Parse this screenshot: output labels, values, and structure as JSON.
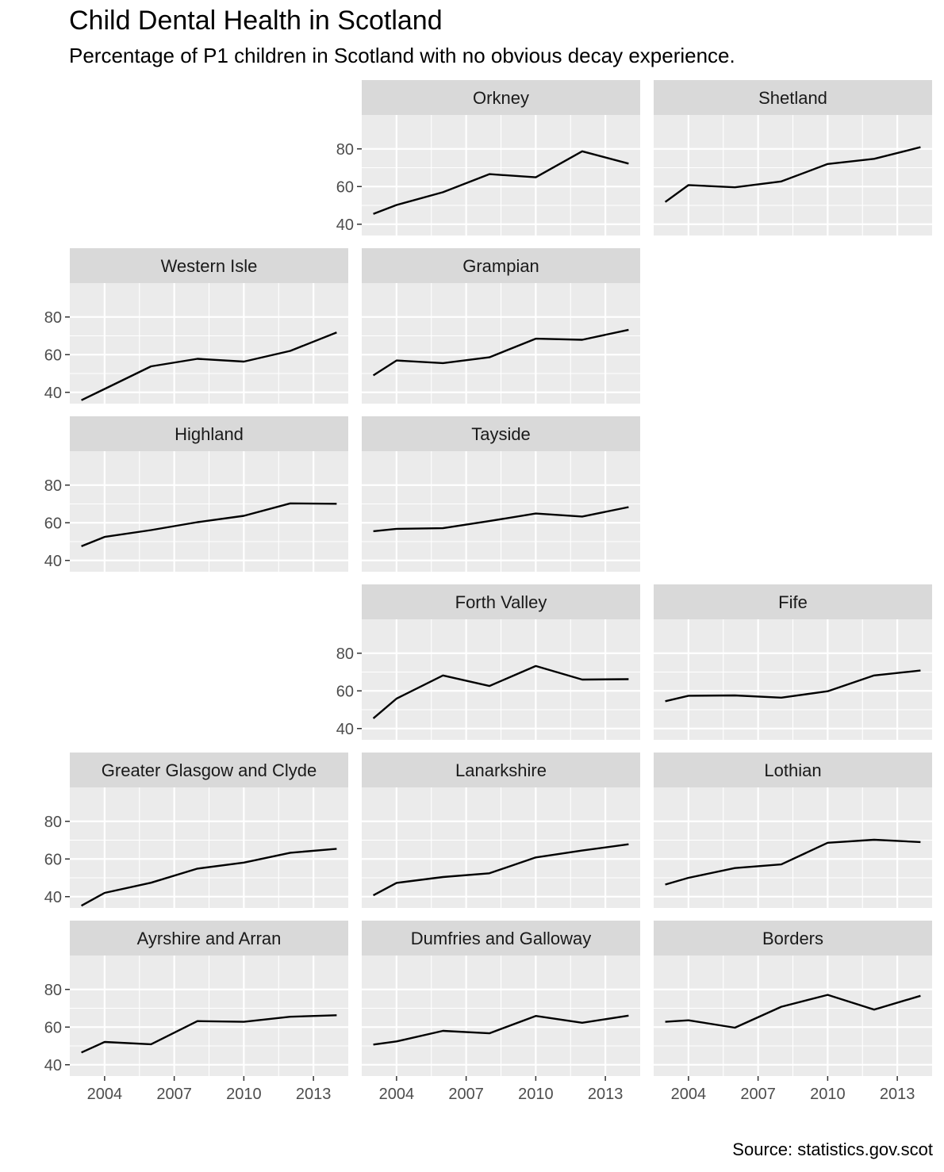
{
  "chart_data": {
    "type": "line",
    "title": "Child Dental Health in Scotland",
    "subtitle": "Percentage of P1 children in Scotland with no obvious decay experience.",
    "caption": "Source: statistics.gov.scot",
    "xlabel": "",
    "ylabel": "",
    "xlim": [
      2002.5,
      2014.5
    ],
    "ylim": [
      34,
      98
    ],
    "x_ticks": [
      2004,
      2007,
      2010,
      2013
    ],
    "y_ticks": [
      40,
      60,
      80
    ],
    "grid": true,
    "x": [
      2003,
      2004,
      2006,
      2008,
      2010,
      2012,
      2014
    ],
    "line_color": "#000000",
    "panel_background": "#EBEBEB",
    "strip_background": "#D9D9D9",
    "grid_color": "#FFFFFF",
    "panels": [
      {
        "name": "Orkney",
        "row": 0,
        "col": 1,
        "values": [
          45.5,
          50.2,
          57,
          66.6,
          64.9,
          78.7,
          72.2
        ]
      },
      {
        "name": "Shetland",
        "row": 0,
        "col": 2,
        "values": [
          51.8,
          60.8,
          59.6,
          62.7,
          72.0,
          74.7,
          80.9
        ]
      },
      {
        "name": "Western Isle",
        "row": 1,
        "col": 0,
        "values": [
          35.8,
          41.8,
          53.8,
          57.8,
          56.3,
          62.0,
          71.8
        ]
      },
      {
        "name": "Grampian",
        "row": 1,
        "col": 1,
        "values": [
          49.0,
          56.9,
          55.5,
          58.6,
          68.5,
          67.9,
          73.2
        ]
      },
      {
        "name": "Highland",
        "row": 2,
        "col": 0,
        "values": [
          47.5,
          52.5,
          56.1,
          60.3,
          63.7,
          70.3,
          70.1
        ]
      },
      {
        "name": "Tayside",
        "row": 2,
        "col": 1,
        "values": [
          55.5,
          56.8,
          57.1,
          60.9,
          64.9,
          63.3,
          68.3
        ]
      },
      {
        "name": "Forth Valley",
        "row": 3,
        "col": 1,
        "values": [
          45.4,
          55.9,
          68.2,
          62.6,
          73.2,
          66.0,
          66.2
        ]
      },
      {
        "name": "Fife",
        "row": 3,
        "col": 2,
        "values": [
          54.5,
          57.4,
          57.6,
          56.4,
          59.8,
          68.2,
          70.8
        ]
      },
      {
        "name": "Greater Glasgow and Clyde",
        "row": 4,
        "col": 0,
        "values": [
          35.2,
          42.0,
          47.4,
          54.9,
          58.1,
          63.3,
          65.4
        ]
      },
      {
        "name": "Lanarkshire",
        "row": 4,
        "col": 1,
        "values": [
          40.7,
          47.3,
          50.4,
          52.4,
          60.8,
          64.5,
          67.8
        ]
      },
      {
        "name": "Lothian",
        "row": 4,
        "col": 2,
        "values": [
          46.4,
          50.0,
          55.2,
          57.1,
          68.6,
          70.2,
          69.0
        ]
      },
      {
        "name": "Ayrshire and Arran",
        "row": 5,
        "col": 0,
        "values": [
          46.5,
          52.1,
          50.9,
          63.2,
          62.8,
          65.5,
          66.3
        ]
      },
      {
        "name": "Dumfries and Galloway",
        "row": 5,
        "col": 1,
        "values": [
          50.7,
          52.4,
          58.0,
          56.7,
          65.9,
          62.3,
          66.1
        ]
      },
      {
        "name": "Borders",
        "row": 5,
        "col": 2,
        "values": [
          62.8,
          63.6,
          59.7,
          70.8,
          77.1,
          69.3,
          76.6
        ]
      }
    ]
  }
}
